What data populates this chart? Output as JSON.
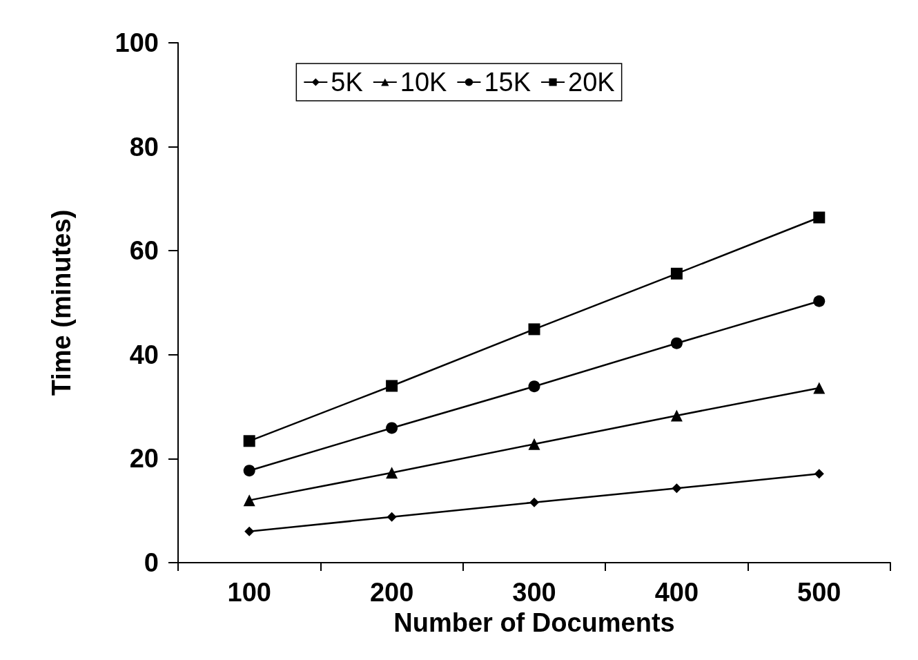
{
  "chart_data": {
    "type": "line",
    "xlabel": "Number of Documents",
    "ylabel": "Time (minutes)",
    "categories": [
      "100",
      "200",
      "300",
      "400",
      "500"
    ],
    "ylim": [
      0,
      100
    ],
    "yticks": [
      0,
      20,
      40,
      60,
      80,
      100
    ],
    "grid": false,
    "legend": "top",
    "line_style": "solid",
    "series": [
      {
        "name": "5K",
        "color": "#000000",
        "marker": "diamond",
        "values": [
          6.0,
          8.8,
          11.6,
          14.3,
          17.1
        ]
      },
      {
        "name": "10K",
        "color": "#000000",
        "marker": "triangle",
        "values": [
          12.0,
          17.3,
          22.8,
          28.3,
          33.6
        ]
      },
      {
        "name": "15K",
        "color": "#000000",
        "marker": "circle",
        "values": [
          17.7,
          25.9,
          33.9,
          42.2,
          50.3
        ]
      },
      {
        "name": "20K",
        "color": "#000000",
        "marker": "square",
        "values": [
          23.4,
          34.0,
          44.9,
          55.6,
          66.4
        ]
      }
    ]
  }
}
